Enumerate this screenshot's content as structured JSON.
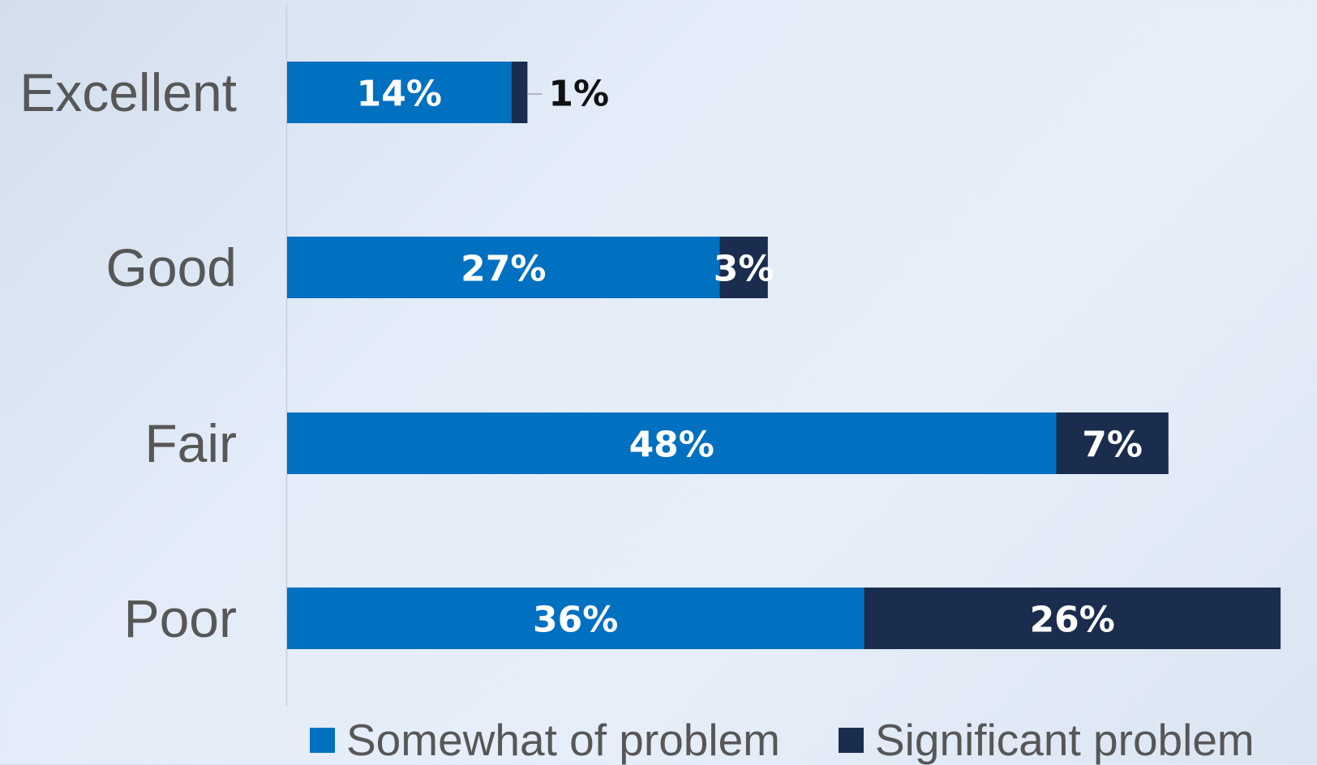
{
  "chart_data": {
    "type": "bar",
    "orientation": "horizontal",
    "stacked": true,
    "categories": [
      "Excellent",
      "Good",
      "Fair",
      "Poor"
    ],
    "series": [
      {
        "name": "Somewhat of problem",
        "values": [
          14,
          27,
          48,
          36
        ],
        "labels": [
          "14%",
          "27%",
          "48%",
          "36%"
        ],
        "color": "#0070c0"
      },
      {
        "name": "Significant problem",
        "values": [
          1,
          3,
          7,
          26
        ],
        "labels": [
          "1%",
          "3%",
          "7%",
          "26%"
        ],
        "color": "#1a2d4e"
      }
    ],
    "value_unit": "%",
    "xlim": [
      0,
      62
    ],
    "grid": false,
    "legend": "bottom"
  }
}
